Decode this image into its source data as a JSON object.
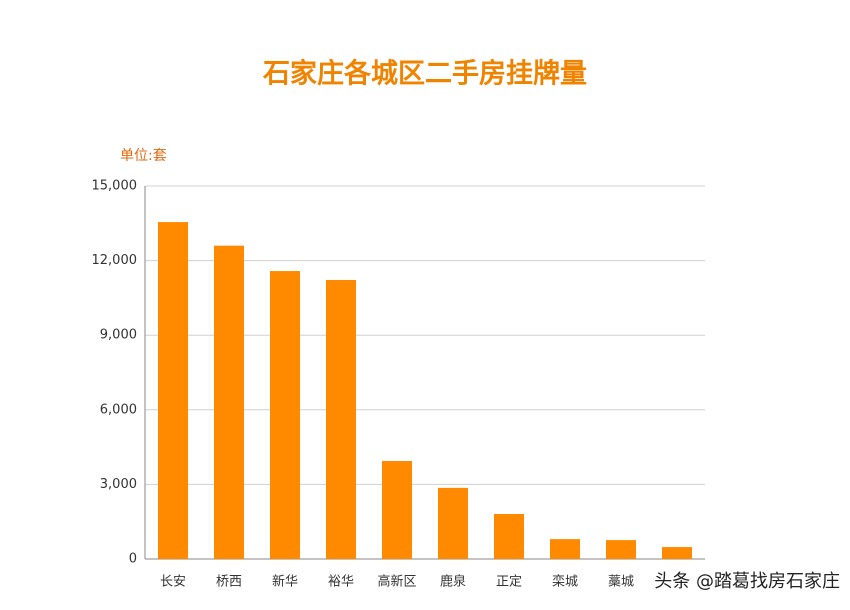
{
  "chart_data": {
    "type": "bar",
    "title": "石家庄各城区二手房挂牌量",
    "y_label": "单位:套",
    "categories": [
      "长安",
      "桥西",
      "新华",
      "裕华",
      "高新区",
      "鹿泉",
      "正定",
      "栾城",
      "藁城",
      null
    ],
    "values": [
      13550,
      12600,
      11580,
      11220,
      3940,
      2860,
      1810,
      800,
      760,
      480
    ],
    "color": "#ff8a00",
    "ylim": [
      0,
      15000
    ],
    "yticks": [
      0,
      {
        "value": 3000,
        "label": "3,000"
      },
      {
        "value": 6000,
        "label": "6,000"
      },
      {
        "value": 9000,
        "label": "9,000"
      },
      {
        "value": 12000,
        "label": "12,000"
      },
      {
        "value": 15000,
        "label": "15,000"
      }
    ],
    "grid": true,
    "annotation": "头条 @踏葛找房石家庄"
  }
}
